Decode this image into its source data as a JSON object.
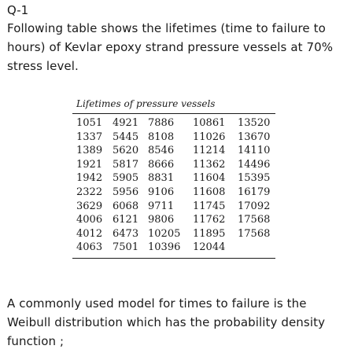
{
  "question": {
    "label": "Q-1",
    "intro": "Following table shows the lifetimes (time to failure to hours) of Kevlar epoxy strand pressure vessels at 70% stress level."
  },
  "table": {
    "caption": "Lifetimes of pressure vessels",
    "rows": [
      [
        "1051",
        "4921",
        "7886",
        "10861",
        "13520"
      ],
      [
        "1337",
        "5445",
        "8108",
        "11026",
        "13670"
      ],
      [
        "1389",
        "5620",
        "8546",
        "11214",
        "14110"
      ],
      [
        "1921",
        "5817",
        "8666",
        "11362",
        "14496"
      ],
      [
        "1942",
        "5905",
        "8831",
        "11604",
        "15395"
      ],
      [
        "2322",
        "5956",
        "9106",
        "11608",
        "16179"
      ],
      [
        "3629",
        "6068",
        "9711",
        "11745",
        "17092"
      ],
      [
        "4006",
        "6121",
        "9806",
        "11762",
        "17568"
      ],
      [
        "4012",
        "6473",
        "10205",
        "11895",
        "17568"
      ],
      [
        "4063",
        "7501",
        "10396",
        "12044",
        ""
      ]
    ]
  },
  "outro": "A commonly used model for times to failure is the Weibull distribution which has the probability density function ;"
}
